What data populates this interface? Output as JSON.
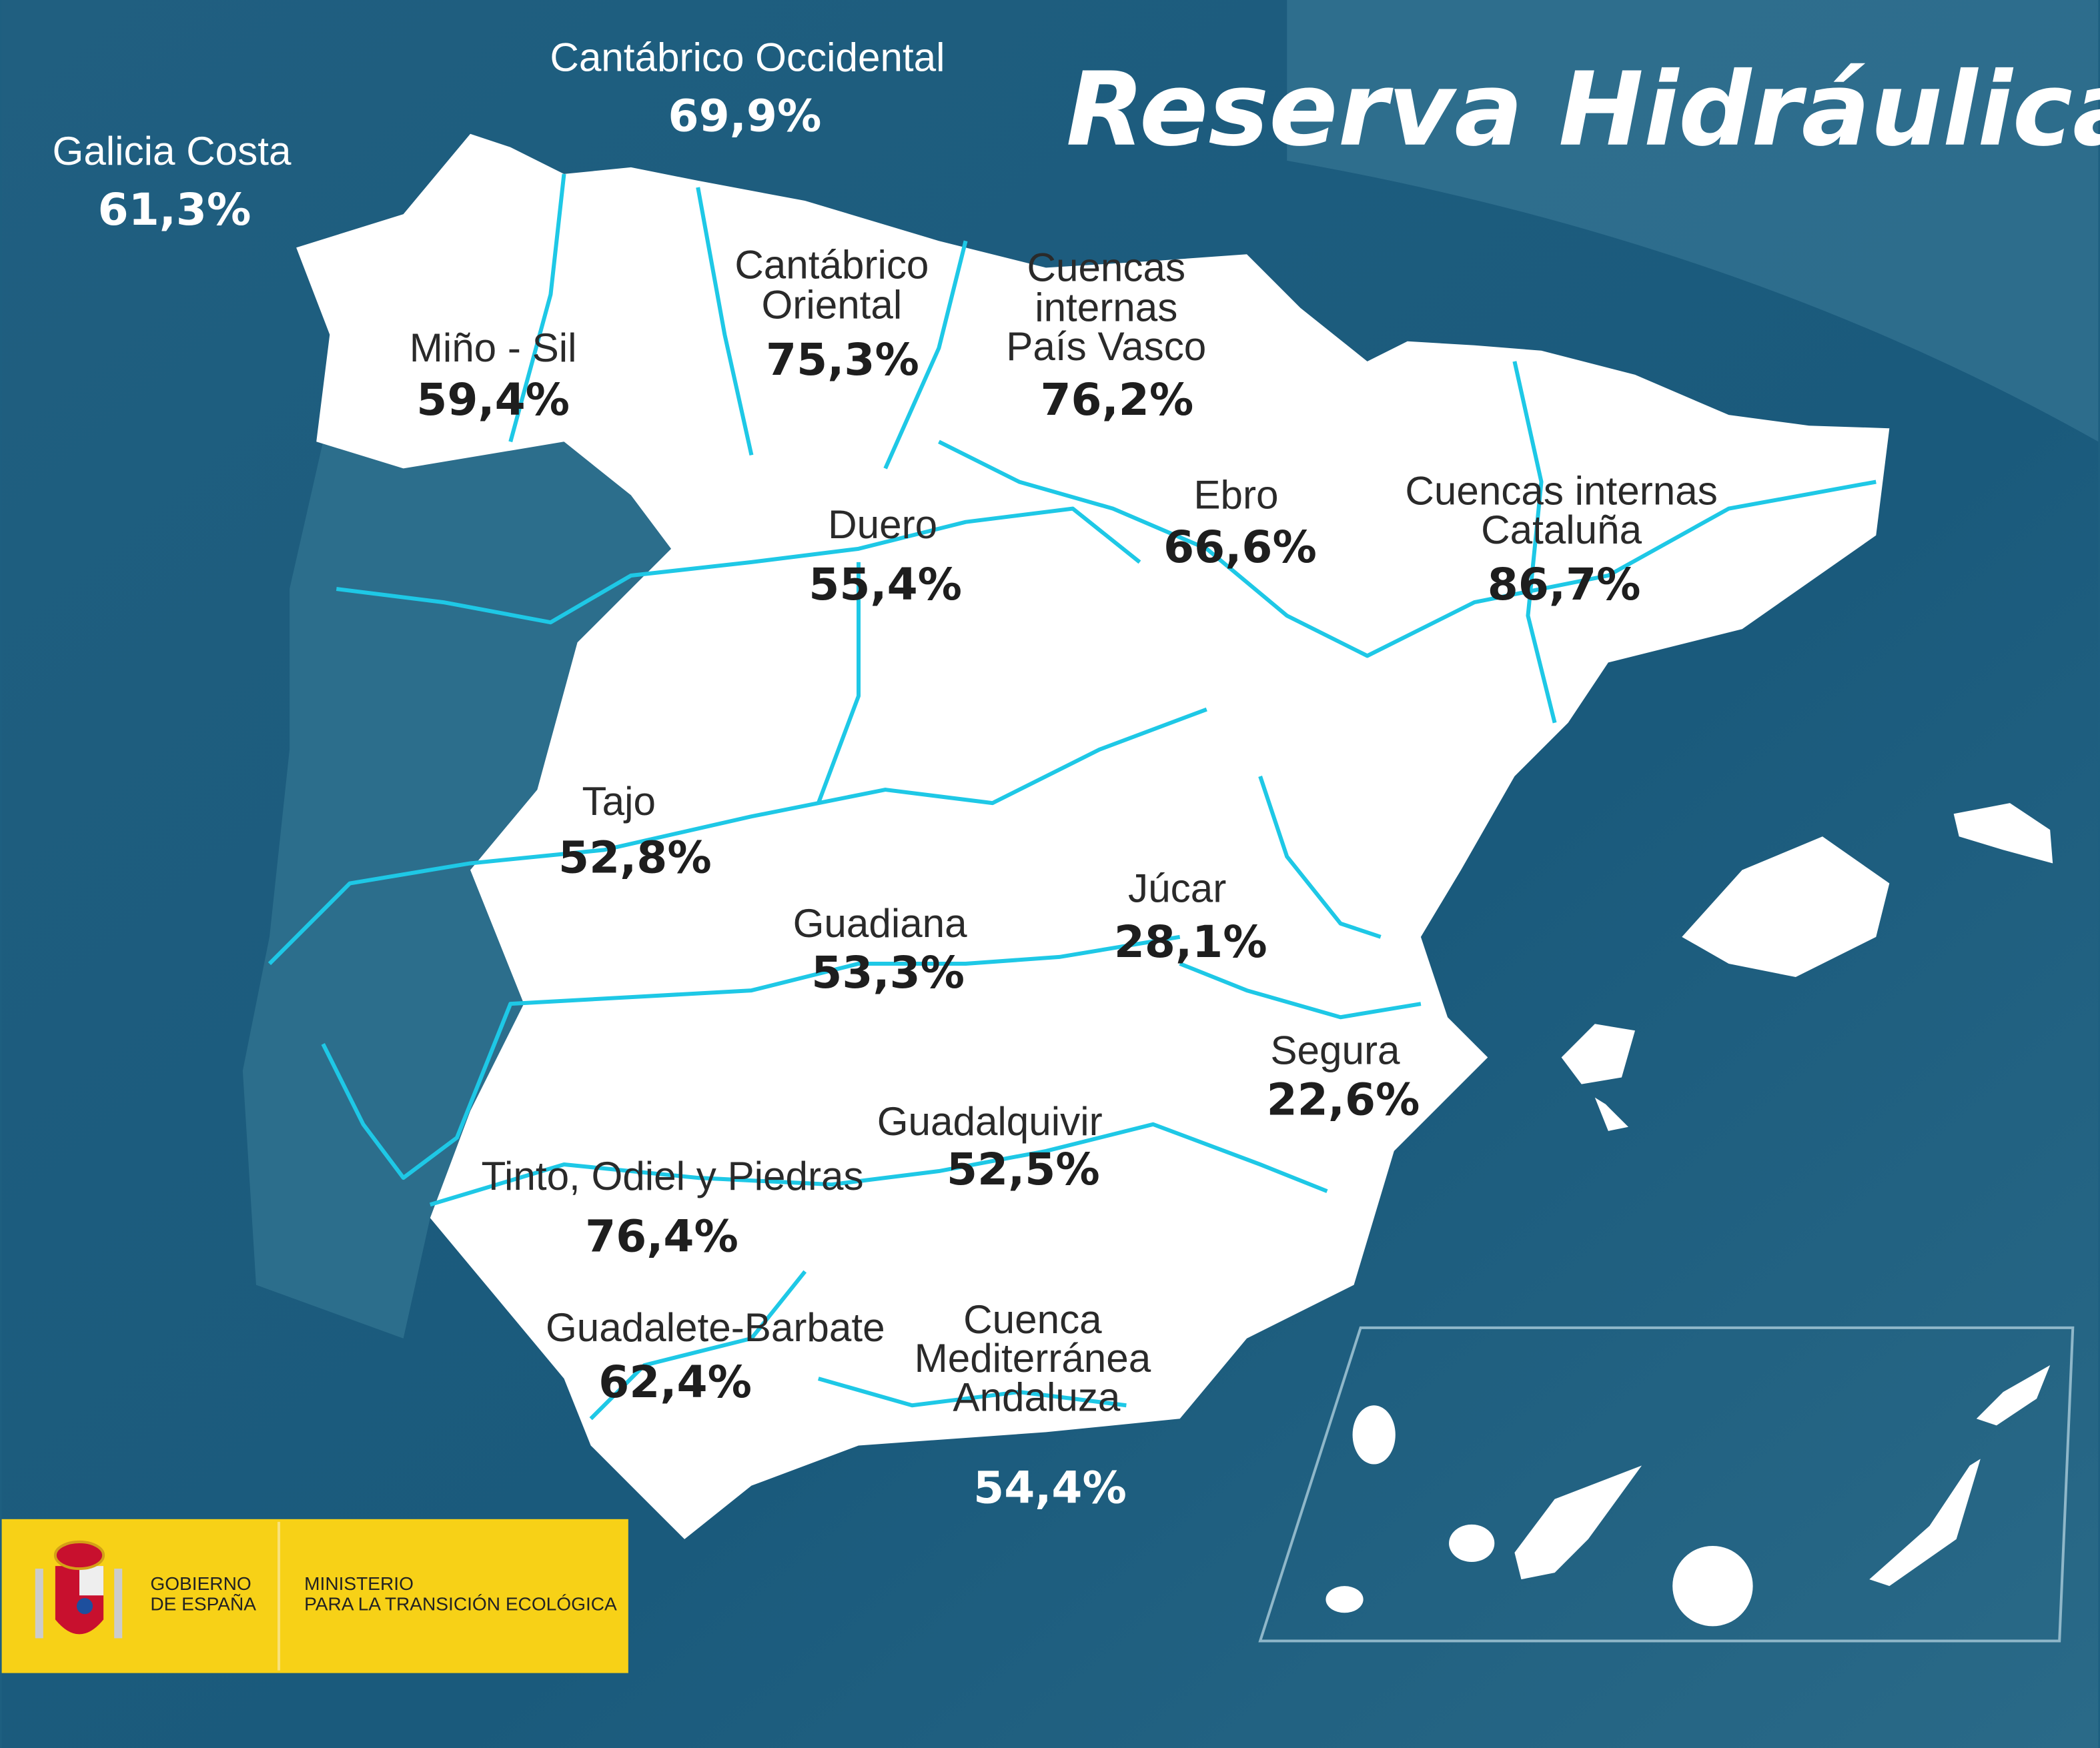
{
  "title": "Reserva Hidráulica",
  "colors": {
    "sea": "#1e5f80",
    "land": "#ffffff",
    "rivers": "#1ec8e6",
    "logo_band": "#f7d117",
    "text_dark": "#222222"
  },
  "basins": [
    {
      "name": "Galicia Costa",
      "value": "61,3%"
    },
    {
      "name": "Cantábrico Occidental",
      "value": "69,9%"
    },
    {
      "name": "Cantábrico Oriental",
      "value": "75,3%"
    },
    {
      "name": "Cuencas internas País Vasco",
      "value": "76,2%"
    },
    {
      "name": "Miño - Sil",
      "value": "59,4%"
    },
    {
      "name": "Duero",
      "value": "55,4%"
    },
    {
      "name": "Ebro",
      "value": "66,6%"
    },
    {
      "name": "Cuencas internas Cataluña",
      "value": "86,7%"
    },
    {
      "name": "Tajo",
      "value": "52,8%"
    },
    {
      "name": "Guadiana",
      "value": "53,3%"
    },
    {
      "name": "Júcar",
      "value": "28,1%"
    },
    {
      "name": "Segura",
      "value": "22,6%"
    },
    {
      "name": "Guadalquivir",
      "value": "52,5%"
    },
    {
      "name": "Tinto, Odiel y Piedras",
      "value": "76,4%"
    },
    {
      "name": "Guadalete-Barbate",
      "value": "62,4%"
    },
    {
      "name": "Cuenca Mediterránea Andaluza",
      "value": "54,4%"
    }
  ],
  "label_lines": {
    "cant_or": [
      "Cantábrico",
      "Oriental"
    ],
    "pv": [
      "Cuencas",
      "internas",
      "País Vasco"
    ],
    "cat": [
      "Cuencas internas",
      "Cataluña"
    ],
    "med": [
      "Cuenca",
      "Mediterránea",
      "Andaluza"
    ]
  },
  "logo": {
    "gov_line1": "GOBIERNO",
    "gov_line2": "DE ESPAÑA",
    "min_line1": "MINISTERIO",
    "min_line2": "PARA LA TRANSICIÓN ECOLÓGICA"
  }
}
